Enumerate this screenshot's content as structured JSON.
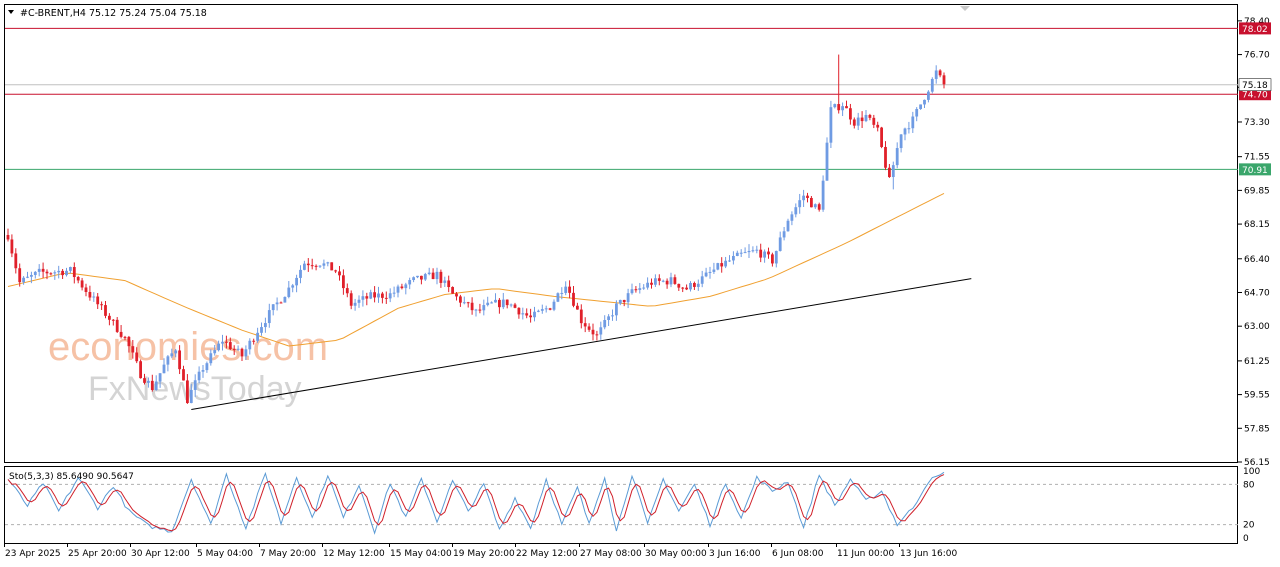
{
  "header": {
    "symbol": "#C-BRENT,H4",
    "ohlc": "75.12 75.24 75.04 75.18"
  },
  "watermark": {
    "line1": "economies.com",
    "line2": "FxNewsToday"
  },
  "colors": {
    "up": "#6f9be3",
    "down": "#e0202a",
    "ma": "#f0a030",
    "resistance": "#c8102e",
    "support": "#3aa66b",
    "trend": "#000000",
    "stoch_main": "#5b9bd5",
    "stoch_signal": "#d0202a"
  },
  "chart_data": [
    {
      "type": "candlestick",
      "title": "#C-BRENT,H4",
      "ylim": [
        56.15,
        79.2
      ],
      "yticks": [
        "78.40",
        "76.70",
        "75.05",
        "73.30",
        "71.55",
        "69.85",
        "68.15",
        "66.40",
        "64.70",
        "63.00",
        "61.25",
        "59.55",
        "57.85",
        "56.15"
      ],
      "xticks": [
        "23 Apr 2025",
        "25 Apr 20:00",
        "30 Apr 12:00",
        "5 May 04:00",
        "7 May 20:00",
        "12 May 12:00",
        "15 May 04:00",
        "19 May 20:00",
        "22 May 12:00",
        "27 May 08:00",
        "30 May 00:00",
        "3 Jun 16:00",
        "6 Jun 08:00",
        "11 Jun 00:00",
        "13 Jun 16:00"
      ],
      "anchors": [
        [
          0,
          67.6
        ],
        [
          3,
          65.2
        ],
        [
          8,
          65.7
        ],
        [
          16,
          65.8
        ],
        [
          20,
          64.8
        ],
        [
          26,
          63.4
        ],
        [
          30,
          62.4
        ],
        [
          34,
          60.6
        ],
        [
          37,
          59.9
        ],
        [
          40,
          61.0
        ],
        [
          43,
          61.9
        ],
        [
          46,
          59.3
        ],
        [
          50,
          60.9
        ],
        [
          55,
          62.3
        ],
        [
          60,
          61.5
        ],
        [
          64,
          62.8
        ],
        [
          68,
          63.9
        ],
        [
          72,
          64.9
        ],
        [
          76,
          66.2
        ],
        [
          80,
          66.2
        ],
        [
          84,
          65.8
        ],
        [
          88,
          64.1
        ],
        [
          93,
          64.5
        ],
        [
          98,
          64.6
        ],
        [
          104,
          65.3
        ],
        [
          110,
          65.6
        ],
        [
          114,
          64.6
        ],
        [
          120,
          63.7
        ],
        [
          124,
          64.1
        ],
        [
          128,
          64.2
        ],
        [
          134,
          63.4
        ],
        [
          139,
          64.0
        ],
        [
          143,
          65.2
        ],
        [
          147,
          63.3
        ],
        [
          151,
          62.5
        ],
        [
          156,
          64.0
        ],
        [
          160,
          64.7
        ],
        [
          165,
          65.2
        ],
        [
          170,
          65.3
        ],
        [
          174,
          64.9
        ],
        [
          178,
          65.4
        ],
        [
          183,
          66.1
        ],
        [
          188,
          66.6
        ],
        [
          192,
          66.8
        ],
        [
          196,
          66.3
        ],
        [
          200,
          68.4
        ],
        [
          204,
          69.6
        ],
        [
          208,
          68.8
        ],
        [
          211,
          73.9
        ],
        [
          214,
          74.2
        ],
        [
          217,
          73.3
        ],
        [
          220,
          73.6
        ],
        [
          223,
          72.8
        ],
        [
          226,
          70.3
        ],
        [
          229,
          72.8
        ],
        [
          232,
          73.4
        ],
        [
          235,
          74.6
        ],
        [
          238,
          75.8
        ],
        [
          240,
          75.18
        ]
      ],
      "ma_anchors": [
        [
          0,
          65.0
        ],
        [
          15,
          65.7
        ],
        [
          30,
          65.3
        ],
        [
          45,
          64.0
        ],
        [
          60,
          62.8
        ],
        [
          72,
          62.0
        ],
        [
          85,
          62.3
        ],
        [
          100,
          63.9
        ],
        [
          112,
          64.6
        ],
        [
          125,
          64.9
        ],
        [
          140,
          64.5
        ],
        [
          150,
          64.3
        ],
        [
          165,
          64.0
        ],
        [
          180,
          64.5
        ],
        [
          195,
          65.4
        ],
        [
          205,
          66.3
        ],
        [
          215,
          67.2
        ],
        [
          225,
          68.2
        ],
        [
          240,
          69.7
        ]
      ],
      "levels": [
        {
          "value": 78.02,
          "label": "78.02",
          "kind": "resistance"
        },
        {
          "value": 74.7,
          "label": "74.70",
          "kind": "resistance"
        },
        {
          "value": 70.91,
          "label": "70.91",
          "kind": "support"
        }
      ],
      "current_price": {
        "value": 75.18,
        "label": "75.18"
      },
      "trendline": {
        "start": [
          47,
          58.8
        ],
        "end": [
          247,
          65.4
        ]
      },
      "spikes": [
        {
          "index": 213,
          "high": 76.7
        },
        {
          "index": 227,
          "low": 69.9
        }
      ]
    },
    {
      "type": "line",
      "title": "Sto(5,3,3) 85.6490 90.5647",
      "ylim": [
        0,
        100
      ],
      "yticks": [
        "100",
        "80",
        "20",
        "0"
      ],
      "levels": [
        20,
        80
      ],
      "series": [
        {
          "name": "Sto(5,3,3)",
          "peaks": [
            [
              0,
              88
            ],
            [
              5,
              48
            ],
            [
              9,
              82
            ],
            [
              13,
              40
            ],
            [
              18,
              90
            ],
            [
              23,
              45
            ],
            [
              27,
              78
            ],
            [
              31,
              40
            ],
            [
              36,
              18
            ],
            [
              42,
              10
            ],
            [
              47,
              88
            ],
            [
              52,
              20
            ],
            [
              56,
              95
            ],
            [
              61,
              15
            ],
            [
              66,
              96
            ],
            [
              70,
              22
            ],
            [
              74,
              92
            ],
            [
              78,
              30
            ],
            [
              82,
              95
            ],
            [
              86,
              30
            ],
            [
              90,
              80
            ],
            [
              94,
              10
            ],
            [
              98,
              82
            ],
            [
              102,
              30
            ],
            [
              106,
              88
            ],
            [
              110,
              25
            ],
            [
              114,
              85
            ],
            [
              118,
              40
            ],
            [
              122,
              80
            ],
            [
              126,
              12
            ],
            [
              130,
              60
            ],
            [
              134,
              15
            ],
            [
              138,
              88
            ],
            [
              142,
              20
            ],
            [
              146,
              75
            ],
            [
              149,
              20
            ],
            [
              153,
              92
            ],
            [
              156,
              10
            ],
            [
              160,
              95
            ],
            [
              164,
              20
            ],
            [
              168,
              88
            ],
            [
              172,
              40
            ],
            [
              176,
              80
            ],
            [
              180,
              20
            ],
            [
              184,
              82
            ],
            [
              188,
              30
            ],
            [
              192,
              90
            ],
            [
              196,
              70
            ],
            [
              200,
              85
            ],
            [
              204,
              15
            ],
            [
              208,
              95
            ],
            [
              212,
              48
            ],
            [
              216,
              88
            ],
            [
              220,
              55
            ],
            [
              224,
              70
            ],
            [
              228,
              20
            ],
            [
              232,
              45
            ],
            [
              236,
              85
            ],
            [
              240,
              96
            ]
          ]
        },
        {
          "name": "Signal",
          "peaks": []
        }
      ]
    }
  ]
}
